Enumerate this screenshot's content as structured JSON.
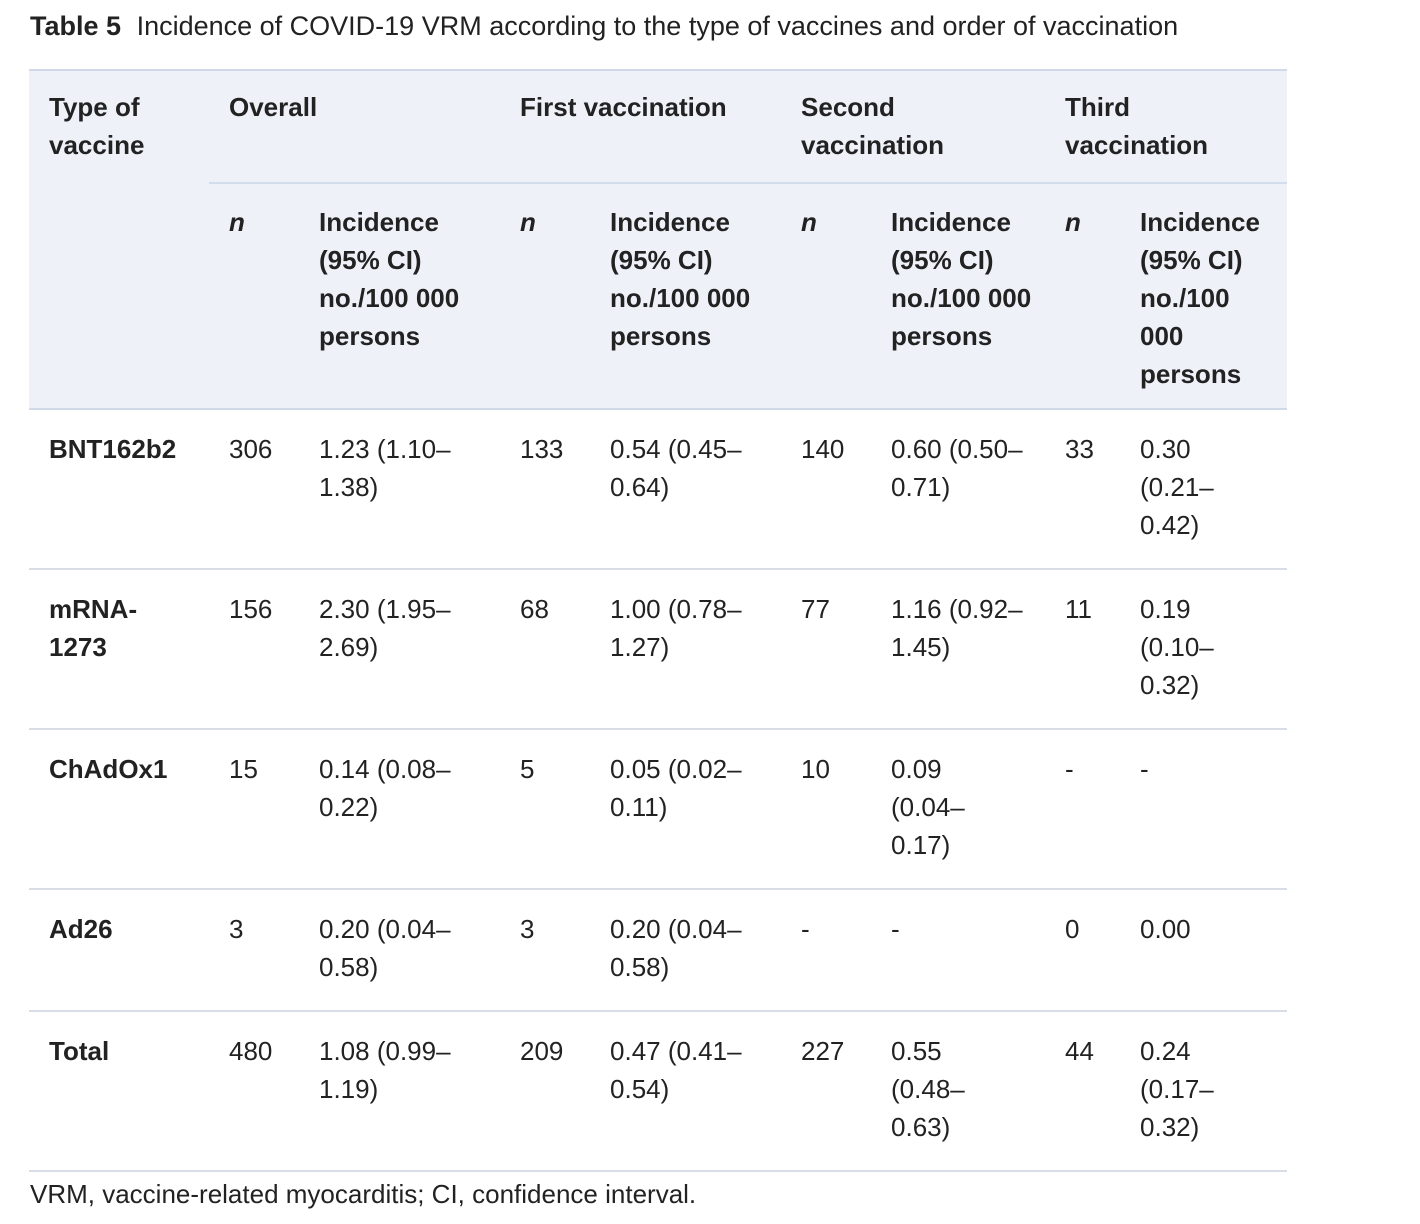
{
  "caption": {
    "label": "Table 5",
    "text": "Incidence of COVID-19 VRM according to the type of vaccines and order of vaccination"
  },
  "header": {
    "type_of_vaccine": "Type of vaccine",
    "groups": [
      "Overall",
      "First vaccination",
      "Second vaccination",
      "Third vaccination"
    ],
    "n_label": "n",
    "incidence_label": "Incidence (95% CI) no./100 000 persons"
  },
  "rows": [
    {
      "vaccine": "BNT162b2",
      "overall_n": "306",
      "overall_inc": "1.23 (1.10–1.38)",
      "first_n": "133",
      "first_inc": "0.54 (0.45–0.64)",
      "second_n": "140",
      "second_inc": "0.60 (0.50–0.71)",
      "third_n": "33",
      "third_inc": "0.30 (0.21–0.42)"
    },
    {
      "vaccine": "mRNA-1273",
      "overall_n": "156",
      "overall_inc": "2.30 (1.95–2.69)",
      "first_n": "68",
      "first_inc": "1.00 (0.78–1.27)",
      "second_n": "77",
      "second_inc": "1.16 (0.92–1.45)",
      "third_n": "11",
      "third_inc": "0.19 (0.10–0.32)"
    },
    {
      "vaccine": "ChAdOx1",
      "overall_n": "15",
      "overall_inc": "0.14 (0.08–0.22)",
      "first_n": "5",
      "first_inc": "0.05 (0.02–0.11)",
      "second_n": "10",
      "second_inc": "0.09 (0.04–0.17)",
      "third_n": "-",
      "third_inc": "-"
    },
    {
      "vaccine": "Ad26",
      "overall_n": "3",
      "overall_inc": "0.20 (0.04–0.58)",
      "first_n": "3",
      "first_inc": "0.20 (0.04–0.58)",
      "second_n": "-",
      "second_inc": "-",
      "third_n": "0",
      "third_inc": "0.00"
    },
    {
      "vaccine": "Total",
      "overall_n": "480",
      "overall_inc": "1.08 (0.99–1.19)",
      "first_n": "209",
      "first_inc": "0.47 (0.41–0.54)",
      "second_n": "227",
      "second_inc": "0.55 (0.48–0.63)",
      "third_n": "44",
      "third_inc": "0.24 (0.17–0.32)"
    }
  ],
  "footnote": "VRM, vaccine-related myocarditis; CI, confidence interval."
}
